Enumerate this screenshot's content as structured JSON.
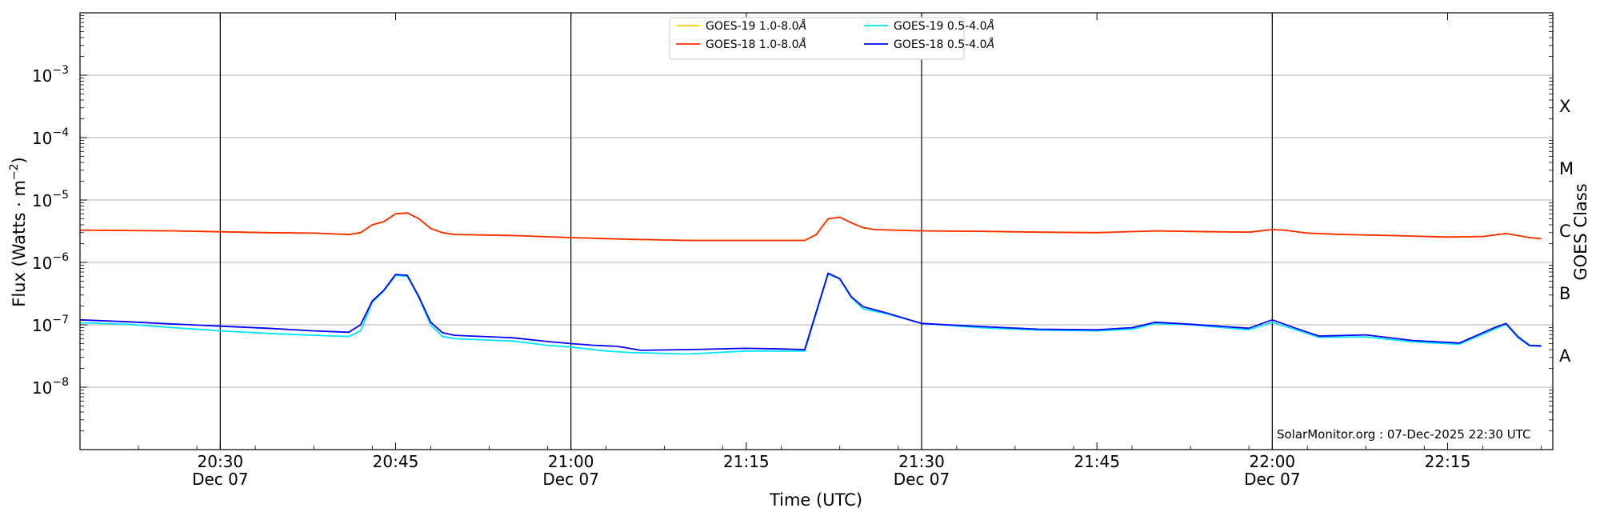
{
  "chart_data": {
    "type": "line",
    "xlabel": "Time (UTC)",
    "ylabel_main": "Flux (Watts · m",
    "ylabel_sup": "−2",
    "ylabel_close": ")",
    "right_label": "GOES Class",
    "credit": "SolarMonitor.org : 07-Dec-2025 22:30 UTC",
    "y_scale": "log",
    "ylim": [
      1e-09,
      0.01
    ],
    "xlim": [
      "20:18",
      "22:24"
    ],
    "grid": "horizontal",
    "legend_position": "top-center",
    "y_ticks": [
      {
        "value": 1e-08,
        "mantissa": "10",
        "exp": "−8"
      },
      {
        "value": 1e-07,
        "mantissa": "10",
        "exp": "−7"
      },
      {
        "value": 1e-06,
        "mantissa": "10",
        "exp": "−6"
      },
      {
        "value": 1e-05,
        "mantissa": "10",
        "exp": "−5"
      },
      {
        "value": 0.0001,
        "mantissa": "10",
        "exp": "−4"
      },
      {
        "value": 0.001,
        "mantissa": "10",
        "exp": "−3"
      }
    ],
    "x_ticks": [
      {
        "time": "20:30",
        "label": "20:30",
        "date": "Dec 07",
        "vline": true
      },
      {
        "time": "20:45",
        "label": "20:45",
        "date": "",
        "vline": false
      },
      {
        "time": "21:00",
        "label": "21:00",
        "date": "Dec 07",
        "vline": true
      },
      {
        "time": "21:15",
        "label": "21:15",
        "date": "",
        "vline": false
      },
      {
        "time": "21:30",
        "label": "21:30",
        "date": "Dec 07",
        "vline": true
      },
      {
        "time": "21:45",
        "label": "21:45",
        "date": "",
        "vline": false
      },
      {
        "time": "22:00",
        "label": "22:00",
        "date": "Dec 07",
        "vline": true
      },
      {
        "time": "22:15",
        "label": "22:15",
        "date": "",
        "vline": false
      }
    ],
    "goes_classes": [
      {
        "label": "A",
        "value": 3.16e-08
      },
      {
        "label": "B",
        "value": 3.16e-07
      },
      {
        "label": "C",
        "value": 3.16e-06
      },
      {
        "label": "M",
        "value": 3.16e-05
      },
      {
        "label": "X",
        "value": 0.000316
      }
    ],
    "legend": [
      {
        "name": "GOES-19 1.0-8.0",
        "unit": "Å",
        "color": "#FFD700"
      },
      {
        "name": "GOES-19 0.5-4.0",
        "unit": "Å",
        "color": "#00E5FF"
      },
      {
        "name": "GOES-18 1.0-8.0",
        "unit": "Å",
        "color": "#FF2A00"
      },
      {
        "name": "GOES-18 0.5-4.0",
        "unit": "Å",
        "color": "#0000FF"
      }
    ],
    "series": [
      {
        "name": "GOES-19 1.0-8.0",
        "color": "#FFD700",
        "points": [
          [
            "20:18",
            3.3e-06
          ],
          [
            "20:22",
            3.25e-06
          ],
          [
            "20:26",
            3.2e-06
          ],
          [
            "20:30",
            3.1e-06
          ],
          [
            "20:34",
            3e-06
          ],
          [
            "20:38",
            2.95e-06
          ],
          [
            "20:41",
            2.8e-06
          ],
          [
            "20:42",
            3e-06
          ],
          [
            "20:43",
            4e-06
          ],
          [
            "20:44",
            4.5e-06
          ],
          [
            "20:45",
            6e-06
          ],
          [
            "20:46",
            6.2e-06
          ],
          [
            "20:47",
            5e-06
          ],
          [
            "20:48",
            3.5e-06
          ],
          [
            "20:49",
            3e-06
          ],
          [
            "20:50",
            2.8e-06
          ],
          [
            "20:55",
            2.7e-06
          ],
          [
            "21:00",
            2.5e-06
          ],
          [
            "21:05",
            2.35e-06
          ],
          [
            "21:10",
            2.25e-06
          ],
          [
            "21:15",
            2.25e-06
          ],
          [
            "21:18",
            2.25e-06
          ],
          [
            "21:20",
            2.25e-06
          ],
          [
            "21:21",
            2.8e-06
          ],
          [
            "21:22",
            5e-06
          ],
          [
            "21:23",
            5.3e-06
          ],
          [
            "21:24",
            4.3e-06
          ],
          [
            "21:25",
            3.6e-06
          ],
          [
            "21:26",
            3.35e-06
          ],
          [
            "21:30",
            3.2e-06
          ],
          [
            "21:35",
            3.15e-06
          ],
          [
            "21:40",
            3.05e-06
          ],
          [
            "21:45",
            3e-06
          ],
          [
            "21:50",
            3.2e-06
          ],
          [
            "21:55",
            3.1e-06
          ],
          [
            "21:58",
            3.05e-06
          ],
          [
            "22:00",
            3.35e-06
          ],
          [
            "22:01",
            3.3e-06
          ],
          [
            "22:03",
            2.95e-06
          ],
          [
            "22:06",
            2.8e-06
          ],
          [
            "22:10",
            2.7e-06
          ],
          [
            "22:15",
            2.55e-06
          ],
          [
            "22:18",
            2.6e-06
          ],
          [
            "22:20",
            2.9e-06
          ],
          [
            "22:22",
            2.5e-06
          ],
          [
            "22:23",
            2.4e-06
          ]
        ]
      },
      {
        "name": "GOES-18 1.0-8.0",
        "color": "#FF2A00",
        "points": [
          [
            "20:18",
            3.3e-06
          ],
          [
            "20:22",
            3.25e-06
          ],
          [
            "20:26",
            3.2e-06
          ],
          [
            "20:30",
            3.1e-06
          ],
          [
            "20:34",
            3e-06
          ],
          [
            "20:38",
            2.95e-06
          ],
          [
            "20:41",
            2.8e-06
          ],
          [
            "20:42",
            3e-06
          ],
          [
            "20:43",
            4e-06
          ],
          [
            "20:44",
            4.5e-06
          ],
          [
            "20:45",
            6e-06
          ],
          [
            "20:46",
            6.2e-06
          ],
          [
            "20:47",
            5e-06
          ],
          [
            "20:48",
            3.5e-06
          ],
          [
            "20:49",
            3e-06
          ],
          [
            "20:50",
            2.8e-06
          ],
          [
            "20:55",
            2.7e-06
          ],
          [
            "21:00",
            2.5e-06
          ],
          [
            "21:05",
            2.35e-06
          ],
          [
            "21:10",
            2.25e-06
          ],
          [
            "21:15",
            2.25e-06
          ],
          [
            "21:18",
            2.25e-06
          ],
          [
            "21:20",
            2.25e-06
          ],
          [
            "21:21",
            2.8e-06
          ],
          [
            "21:22",
            5e-06
          ],
          [
            "21:23",
            5.3e-06
          ],
          [
            "21:24",
            4.3e-06
          ],
          [
            "21:25",
            3.6e-06
          ],
          [
            "21:26",
            3.35e-06
          ],
          [
            "21:30",
            3.2e-06
          ],
          [
            "21:35",
            3.15e-06
          ],
          [
            "21:40",
            3.05e-06
          ],
          [
            "21:45",
            3e-06
          ],
          [
            "21:50",
            3.2e-06
          ],
          [
            "21:55",
            3.1e-06
          ],
          [
            "21:58",
            3.05e-06
          ],
          [
            "22:00",
            3.35e-06
          ],
          [
            "22:01",
            3.3e-06
          ],
          [
            "22:03",
            2.95e-06
          ],
          [
            "22:06",
            2.8e-06
          ],
          [
            "22:10",
            2.7e-06
          ],
          [
            "22:15",
            2.55e-06
          ],
          [
            "22:18",
            2.6e-06
          ],
          [
            "22:20",
            2.9e-06
          ],
          [
            "22:22",
            2.5e-06
          ],
          [
            "22:23",
            2.4e-06
          ]
        ]
      },
      {
        "name": "GOES-19 0.5-4.0",
        "color": "#00E5FF",
        "points": [
          [
            "20:18",
            1.08e-07
          ],
          [
            "20:22",
            1.02e-07
          ],
          [
            "20:26",
            9e-08
          ],
          [
            "20:30",
            8e-08
          ],
          [
            "20:34",
            7.3e-08
          ],
          [
            "20:38",
            6.8e-08
          ],
          [
            "20:41",
            6.5e-08
          ],
          [
            "20:42",
            8e-08
          ],
          [
            "20:43",
            2.3e-07
          ],
          [
            "20:44",
            3.5e-07
          ],
          [
            "20:45",
            6.2e-07
          ],
          [
            "20:46",
            6e-07
          ],
          [
            "20:47",
            2.7e-07
          ],
          [
            "20:48",
            1e-07
          ],
          [
            "20:49",
            6.5e-08
          ],
          [
            "20:50",
            6e-08
          ],
          [
            "20:55",
            5.5e-08
          ],
          [
            "20:58",
            4.7e-08
          ],
          [
            "21:00",
            4.4e-08
          ],
          [
            "21:03",
            3.8e-08
          ],
          [
            "21:05",
            3.6e-08
          ],
          [
            "21:10",
            3.4e-08
          ],
          [
            "21:15",
            3.8e-08
          ],
          [
            "21:18",
            3.8e-08
          ],
          [
            "21:20",
            3.8e-08
          ],
          [
            "21:22",
            6.5e-07
          ],
          [
            "21:23",
            5.4e-07
          ],
          [
            "21:24",
            2.7e-07
          ],
          [
            "21:25",
            1.8e-07
          ],
          [
            "21:27",
            1.5e-07
          ],
          [
            "21:30",
            1.05e-07
          ],
          [
            "21:35",
            9e-08
          ],
          [
            "21:40",
            8.2e-08
          ],
          [
            "21:45",
            8e-08
          ],
          [
            "21:48",
            8.5e-08
          ],
          [
            "21:50",
            1.05e-07
          ],
          [
            "21:53",
            1e-07
          ],
          [
            "21:58",
            8.3e-08
          ],
          [
            "22:00",
            1.1e-07
          ],
          [
            "22:02",
            8.3e-08
          ],
          [
            "22:04",
            6.3e-08
          ],
          [
            "22:08",
            6.4e-08
          ],
          [
            "22:12",
            5.3e-08
          ],
          [
            "22:16",
            4.9e-08
          ],
          [
            "22:19",
            8.5e-08
          ],
          [
            "22:20",
            1.02e-07
          ],
          [
            "22:21",
            6.2e-08
          ],
          [
            "22:22",
            4.6e-08
          ],
          [
            "22:23",
            4.5e-08
          ]
        ]
      },
      {
        "name": "GOES-18 0.5-4.0",
        "color": "#0000FF",
        "points": [
          [
            "20:18",
            1.2e-07
          ],
          [
            "20:22",
            1.12e-07
          ],
          [
            "20:26",
            1.03e-07
          ],
          [
            "20:30",
            9.5e-08
          ],
          [
            "20:34",
            8.8e-08
          ],
          [
            "20:38",
            8e-08
          ],
          [
            "20:41",
            7.6e-08
          ],
          [
            "20:42",
            1e-07
          ],
          [
            "20:43",
            2.4e-07
          ],
          [
            "20:44",
            3.6e-07
          ],
          [
            "20:45",
            6.4e-07
          ],
          [
            "20:46",
            6.2e-07
          ],
          [
            "20:47",
            2.8e-07
          ],
          [
            "20:48",
            1.1e-07
          ],
          [
            "20:49",
            7.5e-08
          ],
          [
            "20:50",
            6.8e-08
          ],
          [
            "20:55",
            6.2e-08
          ],
          [
            "20:58",
            5.4e-08
          ],
          [
            "21:00",
            5e-08
          ],
          [
            "21:02",
            4.7e-08
          ],
          [
            "21:04",
            4.5e-08
          ],
          [
            "21:06",
            3.9e-08
          ],
          [
            "21:10",
            4e-08
          ],
          [
            "21:15",
            4.2e-08
          ],
          [
            "21:18",
            4.1e-08
          ],
          [
            "21:20",
            4e-08
          ],
          [
            "21:22",
            6.7e-07
          ],
          [
            "21:23",
            5.5e-07
          ],
          [
            "21:24",
            2.8e-07
          ],
          [
            "21:25",
            1.95e-07
          ],
          [
            "21:27",
            1.55e-07
          ],
          [
            "21:30",
            1.05e-07
          ],
          [
            "21:35",
            9.4e-08
          ],
          [
            "21:40",
            8.5e-08
          ],
          [
            "21:45",
            8.3e-08
          ],
          [
            "21:48",
            9e-08
          ],
          [
            "21:50",
            1.1e-07
          ],
          [
            "21:53",
            1.02e-07
          ],
          [
            "21:58",
            8.8e-08
          ],
          [
            "22:00",
            1.2e-07
          ],
          [
            "22:02",
            8.8e-08
          ],
          [
            "22:04",
            6.6e-08
          ],
          [
            "22:08",
            6.9e-08
          ],
          [
            "22:12",
            5.6e-08
          ],
          [
            "22:16",
            5.1e-08
          ],
          [
            "22:19",
            9e-08
          ],
          [
            "22:20",
            1.05e-07
          ],
          [
            "22:21",
            6.5e-08
          ],
          [
            "22:22",
            4.7e-08
          ],
          [
            "22:23",
            4.6e-08
          ]
        ]
      }
    ]
  }
}
